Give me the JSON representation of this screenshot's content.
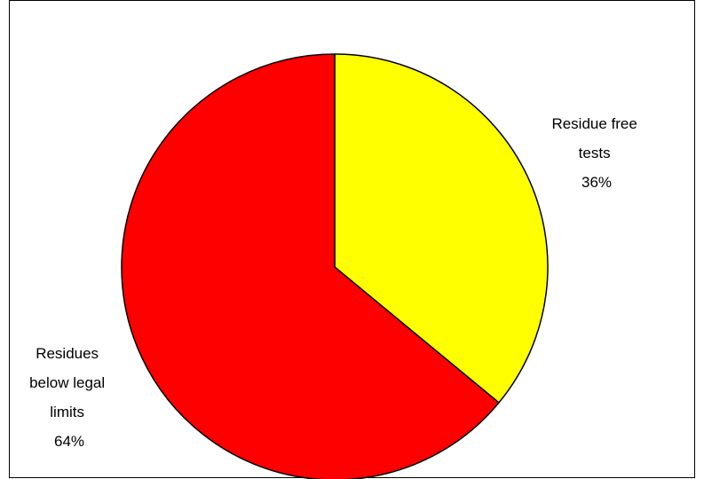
{
  "chart_data": {
    "type": "pie",
    "title": "",
    "start_angle_deg": 0,
    "direction": "clockwise",
    "legend": "none",
    "slices": [
      {
        "label_lines": [
          "Residue free",
          "tests"
        ],
        "percent_label": "36%",
        "value": 36,
        "color": "#FFFF00"
      },
      {
        "label_lines": [
          "Residues",
          "below legal",
          "limits"
        ],
        "percent_label": "64%",
        "value": 64,
        "color": "#FF0000"
      }
    ]
  }
}
